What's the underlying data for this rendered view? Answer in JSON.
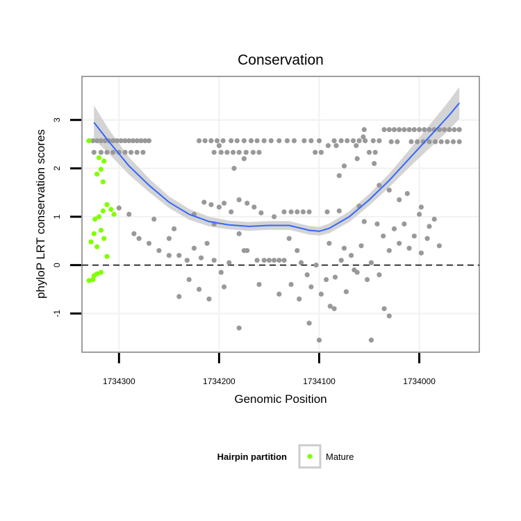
{
  "chart_data": {
    "type": "scatter",
    "title": "Conservation",
    "xlabel": "Genomic Position",
    "ylabel": "phyloP LRT conservation scores",
    "x_reversed": true,
    "xlim": [
      1734337,
      1733940
    ],
    "ylim": [
      -1.8,
      3.9
    ],
    "x_ticks": [
      {
        "value": 1734300,
        "label": "1734300"
      },
      {
        "value": 1734200,
        "label": "1734200"
      },
      {
        "value": 1734100,
        "label": "1734100"
      },
      {
        "value": 1734000,
        "label": "1734000"
      }
    ],
    "y_ticks": [
      {
        "value": -1,
        "label": "-1"
      },
      {
        "value": 0,
        "label": "0"
      },
      {
        "value": 1,
        "label": "1"
      },
      {
        "value": 2,
        "label": "2"
      },
      {
        "value": 3,
        "label": "3"
      }
    ],
    "grid": true,
    "reference_line": {
      "y": 0,
      "style": "dashed"
    },
    "colors": {
      "other_points": "#999999",
      "mature_points": "#7fff00",
      "smooth_line": "#3366ff",
      "confidence_band": "#cccccc",
      "grid": "#f2f2f2",
      "panel_border": "#7f7f7f"
    },
    "legend": {
      "title": "Hairpin partition",
      "position": "bottom",
      "entries": [
        {
          "label": "Mature",
          "color": "#7fff00"
        }
      ]
    },
    "smooth": {
      "x": [
        1734325,
        1734310,
        1734290,
        1734270,
        1734250,
        1734230,
        1734210,
        1734190,
        1734170,
        1734150,
        1734130,
        1734110,
        1734100,
        1734090,
        1734070,
        1734050,
        1734030,
        1734010,
        1733990,
        1733970,
        1733960
      ],
      "y": [
        2.95,
        2.55,
        2.05,
        1.65,
        1.3,
        1.05,
        0.9,
        0.83,
        0.8,
        0.82,
        0.82,
        0.72,
        0.7,
        0.76,
        1.0,
        1.35,
        1.75,
        2.2,
        2.65,
        3.1,
        3.35
      ],
      "band_halfwidth": [
        0.35,
        0.25,
        0.18,
        0.14,
        0.12,
        0.11,
        0.1,
        0.09,
        0.09,
        0.09,
        0.09,
        0.09,
        0.09,
        0.1,
        0.11,
        0.12,
        0.14,
        0.18,
        0.24,
        0.3,
        0.33
      ]
    },
    "series": [
      {
        "points": [
          [
            1734330,
            2.57
          ],
          [
            1734326,
            2.57
          ],
          [
            1734322,
            2.57
          ],
          [
            1734318,
            2.57
          ],
          [
            1734314,
            2.57
          ],
          [
            1734310,
            2.57
          ],
          [
            1734306,
            2.57
          ],
          [
            1734302,
            2.57
          ],
          [
            1734298,
            2.57
          ],
          [
            1734294,
            2.57
          ],
          [
            1734290,
            2.57
          ],
          [
            1734286,
            2.57
          ],
          [
            1734282,
            2.57
          ],
          [
            1734278,
            2.57
          ],
          [
            1734274,
            2.57
          ],
          [
            1734270,
            2.57
          ],
          [
            1734325,
            2.33
          ],
          [
            1734318,
            2.33
          ],
          [
            1734312,
            2.33
          ],
          [
            1734306,
            2.33
          ],
          [
            1734300,
            2.33
          ],
          [
            1734294,
            2.33
          ],
          [
            1734288,
            2.33
          ],
          [
            1734282,
            2.33
          ],
          [
            1734276,
            2.33
          ],
          [
            1734220,
            2.57
          ],
          [
            1734214,
            2.57
          ],
          [
            1734208,
            2.57
          ],
          [
            1734202,
            2.57
          ],
          [
            1734196,
            2.57
          ],
          [
            1734188,
            2.57
          ],
          [
            1734182,
            2.57
          ],
          [
            1734175,
            2.57
          ],
          [
            1734168,
            2.57
          ],
          [
            1734162,
            2.57
          ],
          [
            1734155,
            2.57
          ],
          [
            1734148,
            2.57
          ],
          [
            1734140,
            2.57
          ],
          [
            1734132,
            2.57
          ],
          [
            1734125,
            2.57
          ],
          [
            1734115,
            2.57
          ],
          [
            1734108,
            2.57
          ],
          [
            1734100,
            2.57
          ],
          [
            1734085,
            2.57
          ],
          [
            1734078,
            2.57
          ],
          [
            1734072,
            2.57
          ],
          [
            1734066,
            2.57
          ],
          [
            1734060,
            2.57
          ],
          [
            1734054,
            2.57
          ],
          [
            1734046,
            2.57
          ],
          [
            1734040,
            2.57
          ],
          [
            1734205,
            2.33
          ],
          [
            1734198,
            2.33
          ],
          [
            1734192,
            2.33
          ],
          [
            1734186,
            2.33
          ],
          [
            1734180,
            2.33
          ],
          [
            1734173,
            2.33
          ],
          [
            1734166,
            2.33
          ],
          [
            1734160,
            2.33
          ],
          [
            1734104,
            2.33
          ],
          [
            1734098,
            2.33
          ],
          [
            1734050,
            2.33
          ],
          [
            1734044,
            2.33
          ],
          [
            1734200,
            2.47
          ],
          [
            1734091,
            2.47
          ],
          [
            1734083,
            2.47
          ],
          [
            1734063,
            2.47
          ],
          [
            1734056,
            2.65
          ],
          [
            1734055,
            2.8
          ],
          [
            1734035,
            2.8
          ],
          [
            1734030,
            2.8
          ],
          [
            1734025,
            2.8
          ],
          [
            1734020,
            2.8
          ],
          [
            1734015,
            2.8
          ],
          [
            1734010,
            2.8
          ],
          [
            1734005,
            2.8
          ],
          [
            1734000,
            2.8
          ],
          [
            1733995,
            2.8
          ],
          [
            1733990,
            2.8
          ],
          [
            1733985,
            2.8
          ],
          [
            1733980,
            2.8
          ],
          [
            1733975,
            2.8
          ],
          [
            1733970,
            2.8
          ],
          [
            1733965,
            2.8
          ],
          [
            1733960,
            2.8
          ],
          [
            1734028,
            2.55
          ],
          [
            1734022,
            2.55
          ],
          [
            1734008,
            2.55
          ],
          [
            1734002,
            2.55
          ],
          [
            1733996,
            2.55
          ],
          [
            1733990,
            2.55
          ],
          [
            1733984,
            2.55
          ],
          [
            1733978,
            2.55
          ],
          [
            1733972,
            2.55
          ],
          [
            1733966,
            2.55
          ],
          [
            1733960,
            2.55
          ],
          [
            1734175,
            2.2
          ],
          [
            1734185,
            2.0
          ],
          [
            1734075,
            2.05
          ],
          [
            1734080,
            1.85
          ],
          [
            1734062,
            2.2
          ],
          [
            1734045,
            2.1
          ],
          [
            1734040,
            1.65
          ],
          [
            1734225,
            1.05
          ],
          [
            1734215,
            1.3
          ],
          [
            1734208,
            1.25
          ],
          [
            1734200,
            1.2
          ],
          [
            1734195,
            1.28
          ],
          [
            1734188,
            1.1
          ],
          [
            1734180,
            1.35
          ],
          [
            1734172,
            1.28
          ],
          [
            1734165,
            1.2
          ],
          [
            1734158,
            1.08
          ],
          [
            1734145,
            1.0
          ],
          [
            1734135,
            1.1
          ],
          [
            1734128,
            1.1
          ],
          [
            1734122,
            1.1
          ],
          [
            1734116,
            1.1
          ],
          [
            1734110,
            1.1
          ],
          [
            1734092,
            1.1
          ],
          [
            1734080,
            1.12
          ],
          [
            1734060,
            1.22
          ],
          [
            1734030,
            1.55
          ],
          [
            1734020,
            1.35
          ],
          [
            1734012,
            1.48
          ],
          [
            1734000,
            1.05
          ],
          [
            1733990,
            0.8
          ],
          [
            1734300,
            1.18
          ],
          [
            1734290,
            1.05
          ],
          [
            1734285,
            0.65
          ],
          [
            1734280,
            0.55
          ],
          [
            1734270,
            0.45
          ],
          [
            1734260,
            0.3
          ],
          [
            1734250,
            0.55
          ],
          [
            1734240,
            0.2
          ],
          [
            1734232,
            0.1
          ],
          [
            1734225,
            0.35
          ],
          [
            1734218,
            0.15
          ],
          [
            1734212,
            0.45
          ],
          [
            1734205,
            0.1
          ],
          [
            1734198,
            -0.15
          ],
          [
            1734190,
            0.05
          ],
          [
            1734180,
            0.65
          ],
          [
            1734172,
            0.3
          ],
          [
            1734162,
            0.1
          ],
          [
            1734155,
            0.1
          ],
          [
            1734150,
            0.1
          ],
          [
            1734145,
            0.1
          ],
          [
            1734140,
            0.1
          ],
          [
            1734135,
            0.1
          ],
          [
            1734128,
            -0.4
          ],
          [
            1734122,
            0.3
          ],
          [
            1734118,
            0.05
          ],
          [
            1734112,
            -0.2
          ],
          [
            1734108,
            -0.45
          ],
          [
            1734103,
            0.0
          ],
          [
            1734098,
            -0.6
          ],
          [
            1734093,
            -0.3
          ],
          [
            1734089,
            -0.85
          ],
          [
            1734084,
            -0.25
          ],
          [
            1734078,
            0.1
          ],
          [
            1734073,
            -0.55
          ],
          [
            1734068,
            0.2
          ],
          [
            1734062,
            -0.15
          ],
          [
            1734058,
            0.4
          ],
          [
            1734052,
            -0.3
          ],
          [
            1734048,
            0.05
          ],
          [
            1734042,
            0.85
          ],
          [
            1734036,
            0.6
          ],
          [
            1734030,
            0.3
          ],
          [
            1734025,
            0.75
          ],
          [
            1734020,
            0.45
          ],
          [
            1734015,
            0.85
          ],
          [
            1734010,
            0.35
          ],
          [
            1734005,
            0.6
          ],
          [
            1733998,
            0.25
          ],
          [
            1733992,
            0.55
          ],
          [
            1733985,
            0.95
          ],
          [
            1733980,
            0.4
          ],
          [
            1734240,
            -0.65
          ],
          [
            1734230,
            -0.3
          ],
          [
            1734220,
            -0.5
          ],
          [
            1734210,
            -0.7
          ],
          [
            1734195,
            -0.45
          ],
          [
            1734180,
            -1.3
          ],
          [
            1734160,
            -0.4
          ],
          [
            1734140,
            -0.6
          ],
          [
            1734120,
            -0.7
          ],
          [
            1734110,
            -1.2
          ],
          [
            1734085,
            -0.9
          ],
          [
            1734065,
            -0.1
          ],
          [
            1734040,
            -0.2
          ],
          [
            1734035,
            -0.9
          ],
          [
            1734030,
            -1.05
          ],
          [
            1734048,
            -1.55
          ],
          [
            1734100,
            -1.55
          ],
          [
            1734250,
            0.2
          ],
          [
            1734265,
            0.95
          ],
          [
            1734245,
            0.75
          ],
          [
            1734205,
            0.85
          ],
          [
            1734175,
            0.3
          ],
          [
            1734130,
            0.55
          ],
          [
            1734090,
            0.45
          ],
          [
            1734075,
            0.35
          ],
          [
            1734055,
            0.9
          ],
          [
            1733998,
            1.2
          ]
        ]
      },
      {
        "name": "Mature",
        "points": [
          [
            1734330,
            2.57
          ],
          [
            1734320,
            2.22
          ],
          [
            1734315,
            2.15
          ],
          [
            1734318,
            1.98
          ],
          [
            1734322,
            1.88
          ],
          [
            1734316,
            1.72
          ],
          [
            1734312,
            1.25
          ],
          [
            1734316,
            1.12
          ],
          [
            1734308,
            1.15
          ],
          [
            1734305,
            1.05
          ],
          [
            1734320,
            1.0
          ],
          [
            1734325,
            0.65
          ],
          [
            1734318,
            0.72
          ],
          [
            1734315,
            0.55
          ],
          [
            1734312,
            0.18
          ],
          [
            1734322,
            0.38
          ],
          [
            1734328,
            0.48
          ],
          [
            1734325,
            -0.22
          ],
          [
            1734322,
            -0.18
          ],
          [
            1734318,
            -0.15
          ],
          [
            1734330,
            -0.32
          ],
          [
            1734326,
            -0.3
          ],
          [
            1734324,
            0.95
          ]
        ]
      }
    ]
  }
}
